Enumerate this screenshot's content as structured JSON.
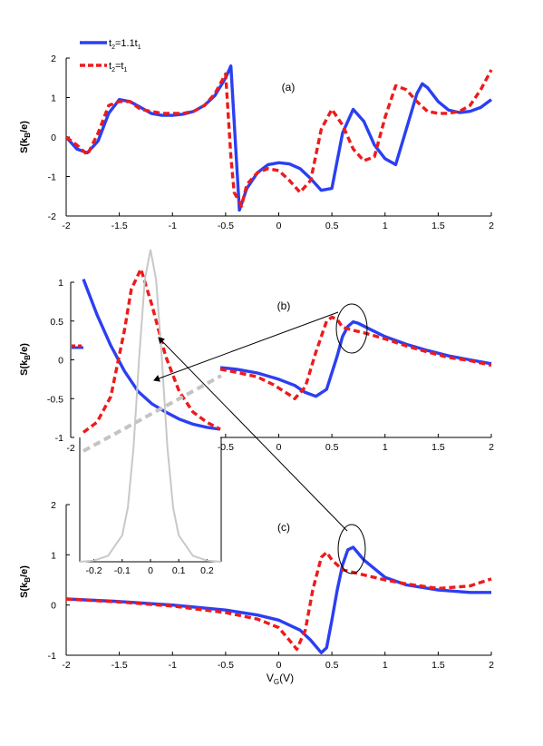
{
  "legend": [
    {
      "series": "s_t2_1_1",
      "label": "t",
      "sub1": "2",
      "mid": "=1.1t",
      "sub2": "1",
      "color": "#2b3ff2",
      "style": "solid"
    },
    {
      "series": "s_t2_t1",
      "label": "t",
      "sub1": "2",
      "mid": "=t",
      "sub2": "1",
      "color": "#ee1b1b",
      "style": "dashed"
    }
  ],
  "x_label": {
    "main": "V",
    "sub": "G",
    "tail": "(V)"
  },
  "chart_data": [
    {
      "type": "line",
      "panel_label": "(a)",
      "ylabel": "S(k_B/e)",
      "xlim": [
        -2,
        2
      ],
      "ylim": [
        -2,
        2
      ],
      "xticks": [
        "-2",
        "-1.5",
        "-1",
        "-0.5",
        "0",
        "0.5",
        "1",
        "1.5",
        "2"
      ],
      "yticks": [
        "-2",
        "-1",
        "0",
        "1",
        "2"
      ],
      "series": [
        {
          "name": "t2=1.1t1",
          "key": "s_t2_1_1",
          "x": [
            -2,
            -1.9,
            -1.8,
            -1.7,
            -1.6,
            -1.5,
            -1.4,
            -1.3,
            -1.2,
            -1.1,
            -1.0,
            -0.9,
            -0.8,
            -0.7,
            -0.6,
            -0.5,
            -0.45,
            -0.4,
            -0.37,
            -0.3,
            -0.2,
            -0.1,
            0,
            0.1,
            0.2,
            0.3,
            0.4,
            0.5,
            0.6,
            0.7,
            0.8,
            0.9,
            1.0,
            1.1,
            1.2,
            1.3,
            1.35,
            1.4,
            1.5,
            1.6,
            1.7,
            1.8,
            1.9,
            2.0
          ],
          "y": [
            0,
            -0.3,
            -0.4,
            -0.1,
            0.6,
            0.95,
            0.9,
            0.75,
            0.6,
            0.55,
            0.55,
            0.58,
            0.65,
            0.8,
            1.05,
            1.5,
            1.8,
            -0.5,
            -1.85,
            -1.3,
            -0.9,
            -0.7,
            -0.65,
            -0.68,
            -0.8,
            -1.05,
            -1.35,
            -1.3,
            0.1,
            0.7,
            0.4,
            -0.2,
            -0.55,
            -0.7,
            0.2,
            1.1,
            1.35,
            1.25,
            0.9,
            0.68,
            0.62,
            0.65,
            0.75,
            0.95
          ]
        },
        {
          "name": "t2=t1",
          "key": "s_t2_t1",
          "x": [
            -2,
            -1.9,
            -1.8,
            -1.7,
            -1.6,
            -1.5,
            -1.4,
            -1.3,
            -1.2,
            -1.1,
            -1.0,
            -0.9,
            -0.8,
            -0.7,
            -0.6,
            -0.5,
            -0.45,
            -0.42,
            -0.35,
            -0.3,
            -0.2,
            -0.1,
            0,
            0.1,
            0.2,
            0.3,
            0.4,
            0.5,
            0.6,
            0.7,
            0.8,
            0.9,
            1.0,
            1.1,
            1.2,
            1.3,
            1.4,
            1.5,
            1.6,
            1.7,
            1.8,
            1.9,
            2.0
          ],
          "y": [
            0,
            -0.2,
            -0.45,
            0.1,
            0.8,
            0.9,
            0.9,
            0.7,
            0.65,
            0.6,
            0.6,
            0.6,
            0.65,
            0.8,
            1.1,
            1.6,
            -0.5,
            -1.4,
            -1.75,
            -1.2,
            -0.9,
            -0.8,
            -0.85,
            -1.1,
            -1.4,
            -1.1,
            0.2,
            0.7,
            0.3,
            -0.3,
            -0.6,
            -0.5,
            0.5,
            1.3,
            1.2,
            0.9,
            0.65,
            0.6,
            0.6,
            0.65,
            0.8,
            1.2,
            1.7
          ]
        }
      ]
    },
    {
      "type": "line",
      "panel_label": "(b)",
      "ylabel": "S(k_B/e)",
      "xlim": [
        -0.55,
        2
      ],
      "ylim": [
        -1,
        1
      ],
      "xticks": [
        "-0.5",
        "0",
        "0.5",
        "1",
        "1.5",
        "2"
      ],
      "yticks": [
        "-1",
        "-0.5",
        "0",
        "0.5",
        "1"
      ],
      "inner_xtick": "-2",
      "series": [
        {
          "name": "t2=1.1t1",
          "key": "s_t2_1_1",
          "x": [
            -0.55,
            -0.4,
            -0.2,
            0,
            0.15,
            0.25,
            0.35,
            0.45,
            0.55,
            0.6,
            0.65,
            0.7,
            0.75,
            0.85,
            1.0,
            1.2,
            1.4,
            1.6,
            1.8,
            2.0
          ],
          "y": [
            -0.1,
            -0.12,
            -0.17,
            -0.25,
            -0.33,
            -0.42,
            -0.47,
            -0.38,
            0.05,
            0.3,
            0.43,
            0.49,
            0.47,
            0.4,
            0.3,
            0.2,
            0.12,
            0.05,
            0.0,
            -0.05
          ]
        },
        {
          "name": "t2=t1",
          "key": "s_t2_t1",
          "x": [
            -0.55,
            -0.4,
            -0.2,
            -0.05,
            0.1,
            0.15,
            0.25,
            0.35,
            0.45,
            0.5,
            0.55,
            0.6,
            0.7,
            0.8,
            1.0,
            1.2,
            1.4,
            1.6,
            1.8,
            2.0
          ],
          "y": [
            -0.12,
            -0.16,
            -0.22,
            -0.32,
            -0.45,
            -0.5,
            -0.35,
            0.1,
            0.5,
            0.55,
            0.52,
            0.42,
            0.38,
            0.35,
            0.27,
            0.18,
            0.1,
            0.03,
            -0.01,
            -0.07
          ]
        }
      ]
    },
    {
      "type": "line",
      "panel_label": "(c)",
      "ylabel": "S(k_B/e)",
      "xlim": [
        -2,
        2
      ],
      "ylim": [
        -1,
        2
      ],
      "xticks": [
        "-2",
        "-1.5",
        "-1",
        "-0.5",
        "0",
        "0.5",
        "1",
        "1.5",
        "2"
      ],
      "yticks": [
        "-1",
        "0",
        "1",
        "2"
      ],
      "series": [
        {
          "name": "t2=1.1t1",
          "key": "s_t2_1_1",
          "x": [
            -2,
            -1.5,
            -1.0,
            -0.5,
            -0.2,
            0,
            0.2,
            0.3,
            0.4,
            0.45,
            0.5,
            0.55,
            0.6,
            0.65,
            0.7,
            0.8,
            1.0,
            1.2,
            1.5,
            1.8,
            2.0
          ],
          "y": [
            0.12,
            0.07,
            0.0,
            -0.1,
            -0.2,
            -0.3,
            -0.5,
            -0.7,
            -0.95,
            -0.85,
            -0.3,
            0.3,
            0.8,
            1.1,
            1.15,
            0.9,
            0.55,
            0.4,
            0.3,
            0.25,
            0.25
          ]
        },
        {
          "name": "t2=t1",
          "key": "s_t2_t1",
          "x": [
            -2,
            -1.5,
            -1.0,
            -0.5,
            -0.2,
            0,
            0.1,
            0.17,
            0.25,
            0.32,
            0.4,
            0.45,
            0.5,
            0.6,
            0.7,
            0.8,
            1.0,
            1.2,
            1.5,
            1.8,
            2.0
          ],
          "y": [
            0.12,
            0.06,
            -0.02,
            -0.15,
            -0.28,
            -0.45,
            -0.7,
            -0.88,
            -0.5,
            0.3,
            0.95,
            1.05,
            0.9,
            0.7,
            0.65,
            0.6,
            0.5,
            0.42,
            0.33,
            0.38,
            0.52
          ]
        }
      ]
    },
    {
      "type": "line",
      "panel_label": "inset",
      "xlim": [
        -0.25,
        0.25
      ],
      "ylim": [
        0,
        2.6
      ],
      "xticks": [
        "-0.2",
        "-0.1",
        "0",
        "0.1",
        "0.2"
      ],
      "series": [
        {
          "name": "",
          "key": "inset_peak",
          "x": [
            -0.25,
            -0.2,
            -0.15,
            -0.1,
            -0.08,
            -0.06,
            -0.04,
            -0.02,
            0,
            0.02,
            0.04,
            0.06,
            0.08,
            0.1,
            0.15,
            0.2,
            0.25
          ],
          "y": [
            0.0,
            0.01,
            0.05,
            0.22,
            0.45,
            0.95,
            1.7,
            2.35,
            2.6,
            2.35,
            1.7,
            0.95,
            0.45,
            0.22,
            0.05,
            0.01,
            0.0
          ],
          "color": "#c8c8c8"
        }
      ]
    },
    {
      "type": "line",
      "panel_label": "zoom",
      "xlim": [
        0,
        1
      ],
      "ylim": [
        -0.6,
        1.0
      ],
      "series": [
        {
          "name": "t2=1.1t1",
          "key": "zoom_blue",
          "x": [
            0.0,
            0.1,
            0.2,
            0.3,
            0.4,
            0.5,
            0.6,
            0.7,
            0.8,
            0.9,
            1.0
          ],
          "y": [
            0.95,
            0.6,
            0.3,
            0.05,
            -0.15,
            -0.27,
            -0.35,
            -0.42,
            -0.47,
            -0.5,
            -0.52
          ],
          "color": "#2b3ff2"
        },
        {
          "name": "t2=t1",
          "key": "zoom_red",
          "x": [
            0.0,
            0.1,
            0.2,
            0.3,
            0.35,
            0.42,
            0.5,
            0.6,
            0.7,
            0.8,
            0.9,
            1.0
          ],
          "y": [
            -0.55,
            -0.45,
            -0.2,
            0.45,
            0.85,
            1.05,
            0.7,
            0.2,
            -0.15,
            -0.35,
            -0.45,
            -0.52
          ],
          "color": "#ee1b1b"
        }
      ]
    }
  ]
}
